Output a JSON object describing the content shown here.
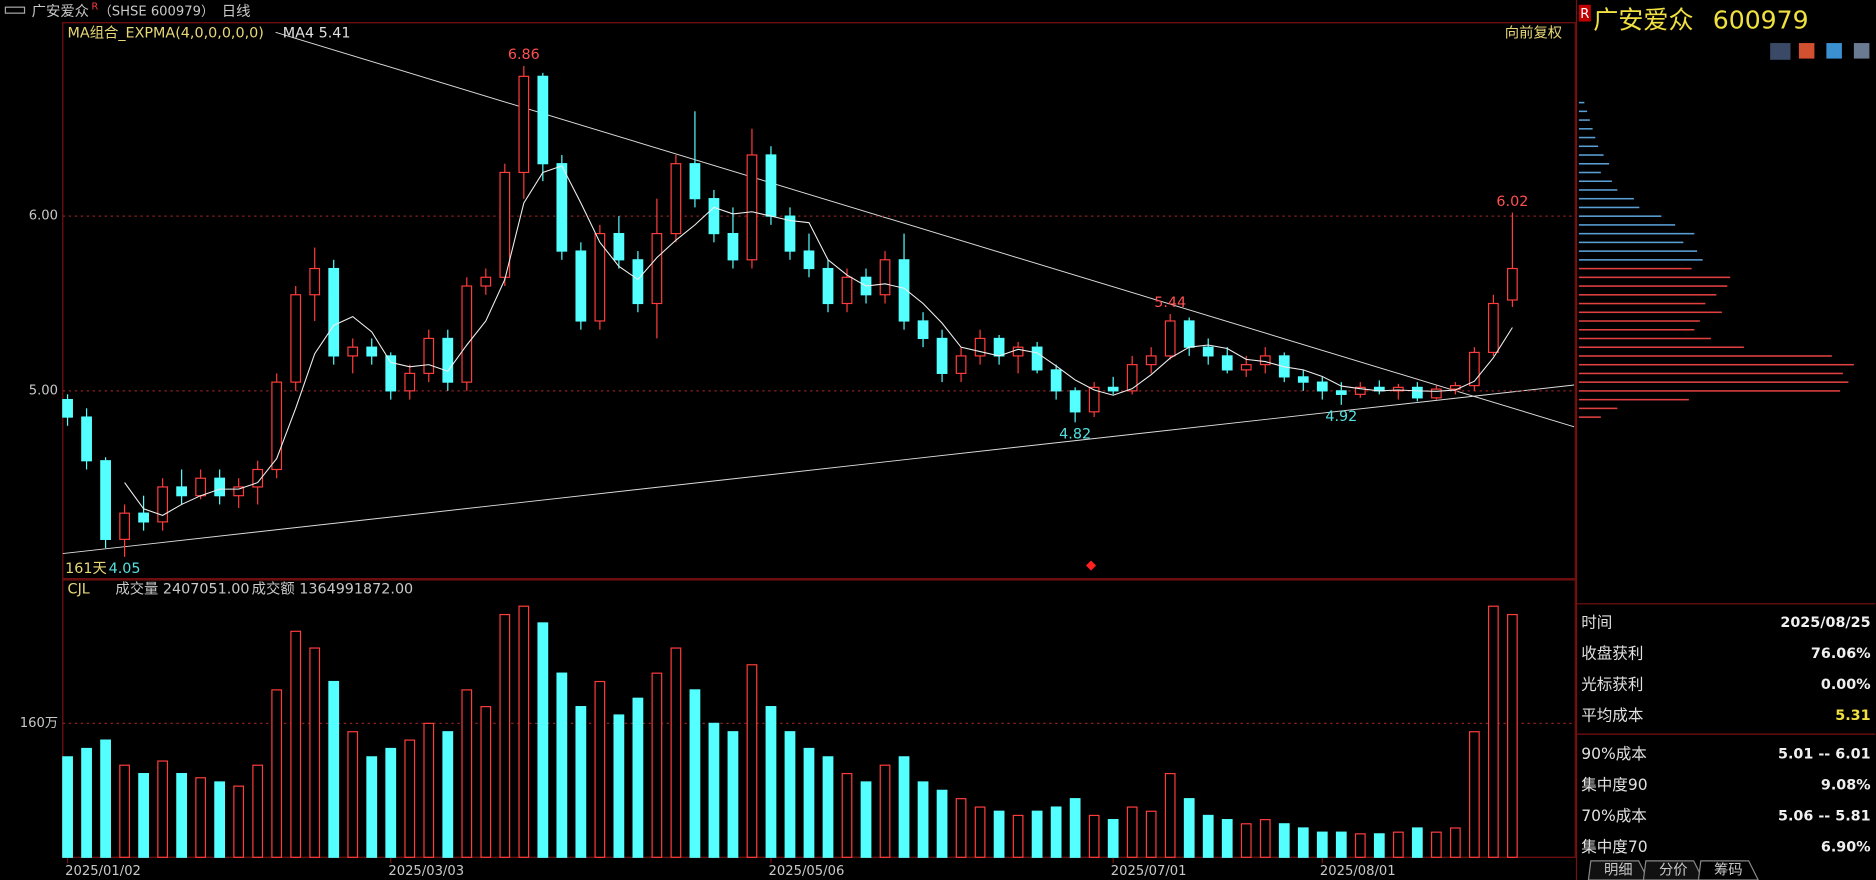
{
  "header": {
    "title": "广安爱众",
    "mark": "R",
    "code": "（SHSE 600979）",
    "period": "日线"
  },
  "indicator": {
    "main": "MA组合_EXPMA(4,0,0,0,0,0)",
    "ma": "MA4 5.41",
    "adjust": "向前复权",
    "days": "161天",
    "vol": "CJL",
    "vol_text": "成交量 2407051.00",
    "amount_text": "成交额 1364991872.00"
  },
  "chart_data": {
    "type": "candlestick",
    "ylim": [
      3.925,
      7.1
    ],
    "yticks": [
      {
        "value": 6,
        "label": "6.00"
      },
      {
        "value": 5,
        "label": "5.00"
      }
    ],
    "vlim": [
      0,
      330
    ],
    "vticks": [
      {
        "value": 160,
        "label": "160万"
      }
    ],
    "up_color": "#ff3c3c",
    "down_color": "#54ffff",
    "xticks": [
      {
        "value": 0,
        "label": "2025/01/02"
      },
      {
        "value": 17,
        "label": "2025/03/03"
      },
      {
        "value": 37,
        "label": "2025/05/06"
      },
      {
        "value": 55,
        "label": "2025/07/01"
      },
      {
        "value": 66,
        "label": "2025/08/01"
      }
    ],
    "candles": [
      [
        4.95,
        4.98,
        4.8,
        4.85,
        120
      ],
      [
        4.85,
        4.9,
        4.55,
        4.6,
        130
      ],
      [
        4.6,
        4.62,
        4.1,
        4.15,
        140
      ],
      [
        4.15,
        4.35,
        4.05,
        4.3,
        110
      ],
      [
        4.3,
        4.4,
        4.2,
        4.25,
        100
      ],
      [
        4.25,
        4.5,
        4.2,
        4.45,
        115
      ],
      [
        4.45,
        4.55,
        4.35,
        4.4,
        100
      ],
      [
        4.4,
        4.55,
        4.38,
        4.5,
        95
      ],
      [
        4.5,
        4.55,
        4.35,
        4.4,
        90
      ],
      [
        4.4,
        4.5,
        4.33,
        4.45,
        85
      ],
      [
        4.45,
        4.6,
        4.35,
        4.55,
        110
      ],
      [
        4.55,
        5.1,
        4.5,
        5.05,
        200
      ],
      [
        5.05,
        5.6,
        5.0,
        5.55,
        270
      ],
      [
        5.55,
        5.82,
        5.4,
        5.7,
        250
      ],
      [
        5.7,
        5.75,
        5.15,
        5.2,
        210
      ],
      [
        5.2,
        5.3,
        5.1,
        5.25,
        150
      ],
      [
        5.25,
        5.3,
        5.15,
        5.2,
        120
      ],
      [
        5.2,
        5.22,
        4.95,
        5.0,
        130
      ],
      [
        5.0,
        5.15,
        4.95,
        5.1,
        140
      ],
      [
        5.1,
        5.35,
        5.05,
        5.3,
        160
      ],
      [
        5.3,
        5.35,
        5.0,
        5.05,
        150
      ],
      [
        5.05,
        5.65,
        5.0,
        5.6,
        200
      ],
      [
        5.6,
        5.7,
        5.55,
        5.65,
        180
      ],
      [
        5.65,
        6.3,
        5.6,
        6.25,
        290
      ],
      [
        6.25,
        6.86,
        6.1,
        6.8,
        300
      ],
      [
        6.8,
        6.82,
        6.2,
        6.3,
        280
      ],
      [
        6.3,
        6.35,
        5.75,
        5.8,
        220
      ],
      [
        5.8,
        5.85,
        5.35,
        5.4,
        180
      ],
      [
        5.4,
        5.95,
        5.35,
        5.9,
        210
      ],
      [
        5.9,
        6.0,
        5.7,
        5.75,
        170
      ],
      [
        5.75,
        5.8,
        5.45,
        5.5,
        190
      ],
      [
        5.5,
        6.1,
        5.3,
        5.9,
        220
      ],
      [
        5.9,
        6.35,
        5.85,
        6.3,
        250
      ],
      [
        6.3,
        6.6,
        6.05,
        6.1,
        200
      ],
      [
        6.1,
        6.15,
        5.85,
        5.9,
        160
      ],
      [
        5.9,
        6.05,
        5.7,
        5.75,
        150
      ],
      [
        5.75,
        6.5,
        5.7,
        6.35,
        230
      ],
      [
        6.35,
        6.4,
        5.95,
        6.0,
        180
      ],
      [
        6.0,
        6.05,
        5.75,
        5.8,
        150
      ],
      [
        5.8,
        5.9,
        5.65,
        5.7,
        130
      ],
      [
        5.7,
        5.75,
        5.45,
        5.5,
        120
      ],
      [
        5.5,
        5.7,
        5.45,
        5.65,
        100
      ],
      [
        5.65,
        5.7,
        5.5,
        5.55,
        90
      ],
      [
        5.55,
        5.8,
        5.5,
        5.75,
        110
      ],
      [
        5.75,
        5.9,
        5.35,
        5.4,
        120
      ],
      [
        5.4,
        5.45,
        5.25,
        5.3,
        90
      ],
      [
        5.3,
        5.35,
        5.05,
        5.1,
        80
      ],
      [
        5.1,
        5.25,
        5.05,
        5.2,
        70
      ],
      [
        5.2,
        5.35,
        5.15,
        5.3,
        60
      ],
      [
        5.3,
        5.32,
        5.15,
        5.2,
        55
      ],
      [
        5.2,
        5.28,
        5.1,
        5.25,
        50
      ],
      [
        5.25,
        5.28,
        5.1,
        5.12,
        55
      ],
      [
        5.12,
        5.15,
        4.95,
        5.0,
        60
      ],
      [
        5.0,
        5.02,
        4.82,
        4.88,
        70
      ],
      [
        4.88,
        5.05,
        4.85,
        5.02,
        50
      ],
      [
        5.02,
        5.08,
        4.98,
        5.0,
        45
      ],
      [
        5.0,
        5.2,
        4.98,
        5.15,
        60
      ],
      [
        5.15,
        5.25,
        5.1,
        5.2,
        55
      ],
      [
        5.2,
        5.44,
        5.18,
        5.4,
        100
      ],
      [
        5.4,
        5.42,
        5.2,
        5.25,
        70
      ],
      [
        5.25,
        5.3,
        5.15,
        5.2,
        50
      ],
      [
        5.2,
        5.25,
        5.1,
        5.12,
        45
      ],
      [
        5.12,
        5.2,
        5.08,
        5.15,
        40
      ],
      [
        5.15,
        5.25,
        5.1,
        5.2,
        45
      ],
      [
        5.2,
        5.22,
        5.05,
        5.08,
        40
      ],
      [
        5.08,
        5.12,
        5.0,
        5.05,
        35
      ],
      [
        5.05,
        5.08,
        4.95,
        5.0,
        30
      ],
      [
        5.0,
        5.05,
        4.92,
        4.98,
        30
      ],
      [
        4.98,
        5.05,
        4.96,
        5.02,
        28
      ],
      [
        5.02,
        5.06,
        4.98,
        5.0,
        28
      ],
      [
        5.0,
        5.04,
        4.95,
        5.02,
        30
      ],
      [
        5.02,
        5.05,
        4.94,
        4.96,
        35
      ],
      [
        4.96,
        5.03,
        4.95,
        5.01,
        30
      ],
      [
        5.01,
        5.05,
        4.98,
        5.03,
        35
      ],
      [
        5.03,
        5.25,
        5.0,
        5.22,
        150
      ],
      [
        5.22,
        5.55,
        5.2,
        5.5,
        300
      ],
      [
        5.52,
        6.02,
        5.48,
        5.7,
        290
      ]
    ],
    "annotations": [
      {
        "index": 24,
        "value": 6.86,
        "pos": "high"
      },
      {
        "index": 3,
        "value": 4.05,
        "pos": "low"
      },
      {
        "index": 58,
        "value": 5.44,
        "pos": "high"
      },
      {
        "index": 53,
        "value": 4.82,
        "pos": "low"
      },
      {
        "index": 67,
        "value": 4.92,
        "pos": "low"
      },
      {
        "index": 76,
        "value": 6.02,
        "pos": "high"
      }
    ],
    "chips": {
      "xlim": [
        0,
        100
      ],
      "prices": [
        6.65,
        6.6,
        6.55,
        6.5,
        6.45,
        6.4,
        6.35,
        6.3,
        6.25,
        6.2,
        6.15,
        6.1,
        6.05,
        6.0,
        5.95,
        5.9,
        5.85,
        5.8,
        5.75,
        5.7,
        5.65,
        5.6,
        5.55,
        5.5,
        5.45,
        5.4,
        5.35,
        5.3,
        5.25,
        5.2,
        5.15,
        5.1,
        5.05,
        5.0,
        4.95,
        4.9,
        4.85
      ],
      "values": [
        2,
        3,
        4,
        5,
        6,
        7,
        9,
        11,
        8,
        12,
        14,
        20,
        22,
        30,
        35,
        42,
        38,
        43,
        45,
        41,
        55,
        54,
        50,
        46,
        52,
        44,
        42,
        48,
        60,
        92,
        100,
        96,
        98,
        95,
        40,
        14,
        8
      ],
      "above_color": "#5a9fd4",
      "below_color": "#e04040"
    }
  },
  "panel": {
    "title": "广安爱众",
    "code": "600979",
    "mark": "R",
    "rows": [
      [
        "时间",
        "2025/08/25"
      ],
      [
        "收盘获利",
        "76.06%"
      ],
      [
        "光标获利",
        "0.00%"
      ],
      [
        "平均成本",
        "5.31"
      ],
      [
        "90%成本",
        "5.01 -- 6.01"
      ],
      [
        "集中度90",
        "9.08%"
      ],
      [
        "70%成本",
        "5.06 -- 5.81"
      ],
      [
        "集中度70",
        "6.90%"
      ]
    ],
    "tabs": [
      "明细",
      "分价",
      "筹码"
    ]
  }
}
